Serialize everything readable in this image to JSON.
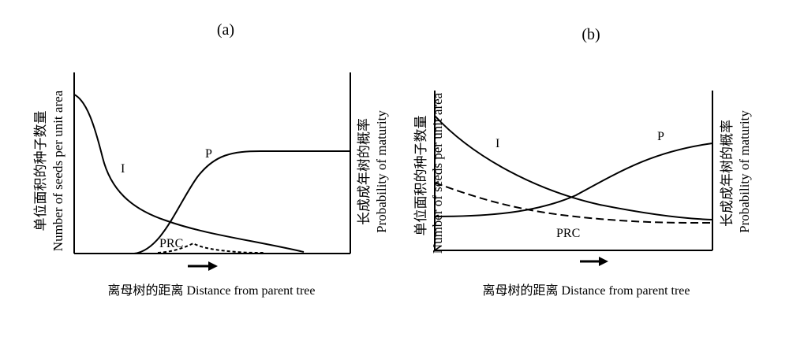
{
  "panels": [
    {
      "id": "a",
      "label": "(a)",
      "ylabel_cn": "单位面积的种子数量",
      "ylabel_en": "Number of seeds per unit area",
      "y2label_cn": "长成成年树的概率",
      "y2label_en": "Probability of maturity",
      "xlabel": "离母树的距离 Distance from parent tree",
      "curves": [
        {
          "name": "I",
          "style": "solid"
        },
        {
          "name": "P",
          "style": "solid"
        },
        {
          "name": "PRC",
          "style": "dashed"
        }
      ]
    },
    {
      "id": "b",
      "label": "(b)",
      "ylabel_cn": "单位面积的种子数量",
      "ylabel_en": "Number of seeds per unit area",
      "y2label_cn": "长成成年树的概率",
      "y2label_en": "Probability of maturity",
      "xlabel": "离母树的距离 Distance from parent tree",
      "curves": [
        {
          "name": "I",
          "style": "solid"
        },
        {
          "name": "P",
          "style": "solid"
        },
        {
          "name": "PRC",
          "style": "dashed"
        }
      ]
    }
  ],
  "colors": {
    "ink": "#000000",
    "background": "#ffffff"
  }
}
